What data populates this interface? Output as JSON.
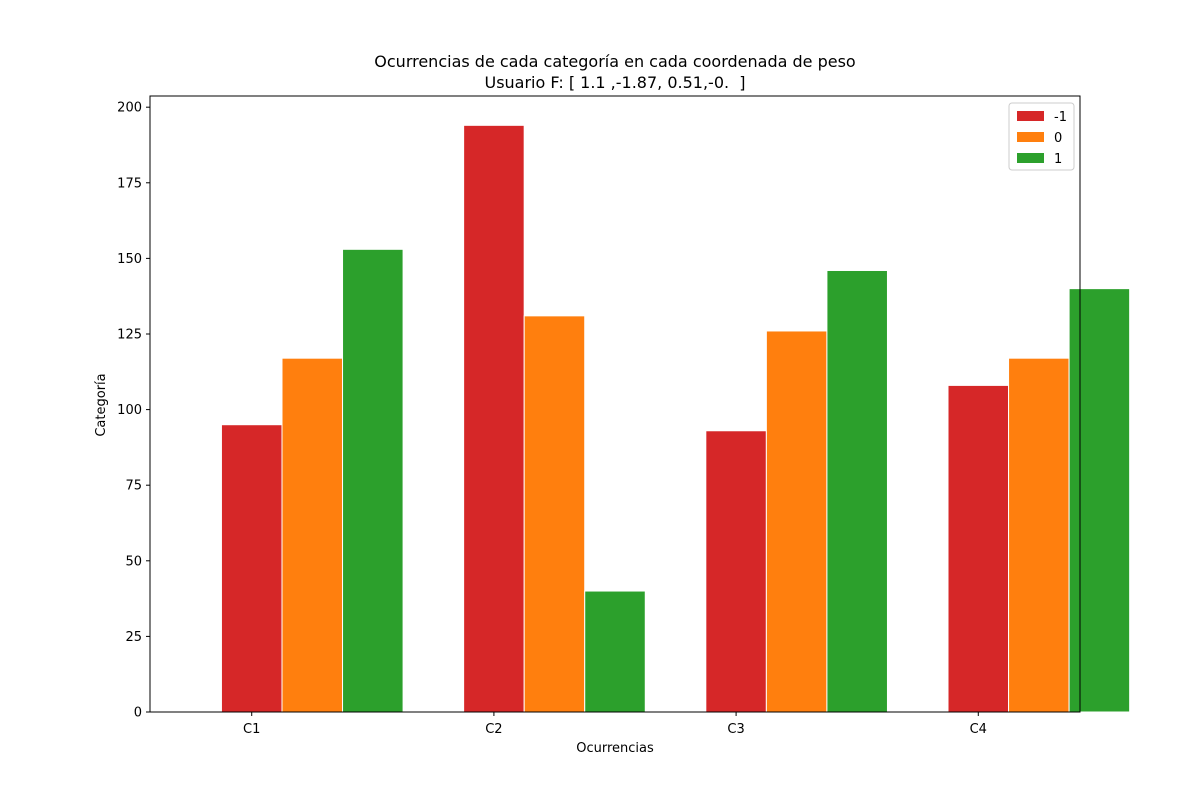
{
  "chart_data": {
    "type": "bar",
    "title": "Ocurrencias de cada categoría en cada coordenada de peso",
    "subtitle": "Usuario F: [ 1.1 ,-1.87, 0.51,-0.  ]",
    "xlabel": "Ocurrencias",
    "ylabel": "Categoría",
    "categories": [
      "C1",
      "C2",
      "C3",
      "C4"
    ],
    "series": [
      {
        "name": "-1",
        "color": "#d62728",
        "values": [
          95,
          194,
          93,
          108
        ]
      },
      {
        "name": "0",
        "color": "#ff7f0e",
        "values": [
          117,
          131,
          126,
          117
        ]
      },
      {
        "name": "1",
        "color": "#2ca02c",
        "values": [
          153,
          40,
          146,
          140
        ]
      }
    ],
    "ylim": [
      0,
      203.7
    ],
    "yticks": [
      0,
      25,
      50,
      75,
      100,
      125,
      150,
      175,
      200
    ],
    "grid": false,
    "legend_position": "top-right"
  }
}
